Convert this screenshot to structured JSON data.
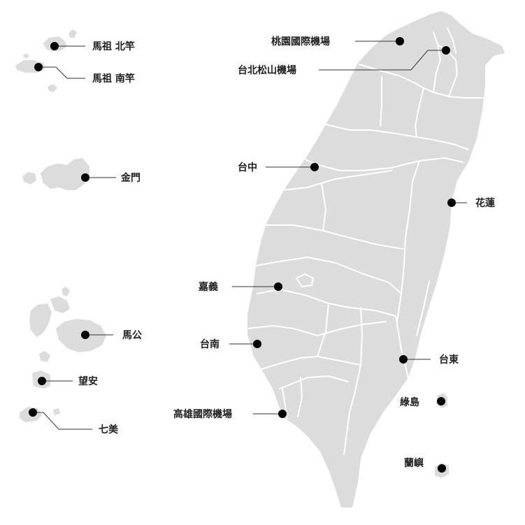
{
  "map": {
    "colors": {
      "land": "#dcdcdc",
      "borders": "#ffffff",
      "markers": "#000000",
      "text": "#222222"
    },
    "locations": {
      "matsu_beigan": "馬祖 北竿",
      "matsu_nangan": "馬祖 南竿",
      "kinmen": "金門",
      "magong": "馬公",
      "wangan": "望安",
      "qimei": "七美",
      "taoyuan_airport": "桃園國際機場",
      "taipei_songshan": "台北松山機場",
      "taichung": "台中",
      "hualien": "花蓮",
      "chiayi": "嘉義",
      "tainan": "台南",
      "taitung": "台東",
      "kaohsiung_airport": "高雄國際機場",
      "green_island": "綠島",
      "orchid_island": "蘭嶼"
    }
  }
}
